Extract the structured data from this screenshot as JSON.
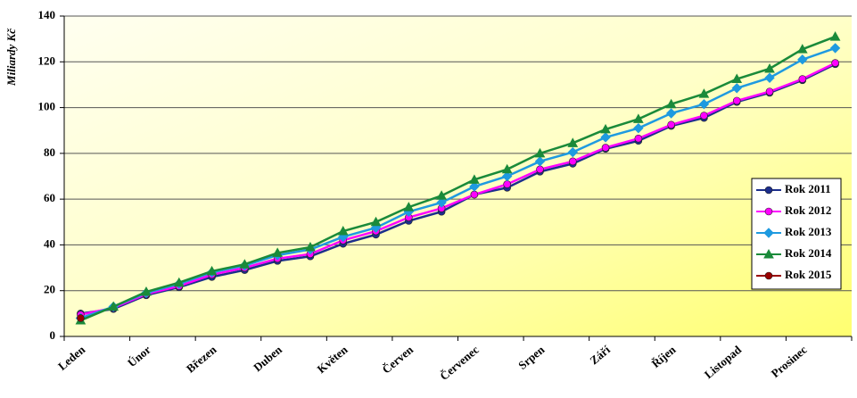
{
  "chart_data": {
    "type": "line",
    "y_label": "Miliardy Kč",
    "categories": [
      "Leden",
      null,
      "Únor",
      null,
      "Březen",
      null,
      "Duben",
      null,
      "Květen",
      null,
      "Červen",
      null,
      "Červenec",
      null,
      "Srpen",
      null,
      "Září",
      null,
      "Říjen",
      null,
      "Listopad",
      null,
      "Prosinec",
      null
    ],
    "ylim": [
      0,
      140
    ],
    "yticks": [
      0,
      20,
      40,
      60,
      80,
      100,
      120,
      140
    ],
    "grid": true,
    "legend": "right",
    "series": [
      {
        "name": "Rok 2011",
        "color": "#1c2e8c",
        "marker": "circle",
        "values": [
          10,
          12,
          18,
          21.5,
          26,
          29,
          33,
          35,
          40.5,
          44.5,
          50.5,
          54.5,
          62,
          65,
          72,
          75.5,
          82,
          85.5,
          92,
          95.5,
          102.5,
          106.5,
          112,
          119
        ]
      },
      {
        "name": "Rok 2012",
        "color": "#ff00ff",
        "marker": "circle",
        "values": [
          9.5,
          12.5,
          18.5,
          22,
          27,
          30,
          34,
          36,
          42,
          46,
          52,
          56,
          62,
          66.5,
          73,
          76.5,
          82.5,
          86.5,
          92.5,
          96.5,
          103,
          107,
          112.5,
          119.5
        ]
      },
      {
        "name": "Rok 2013",
        "color": "#1e9ae0",
        "marker": "diamond",
        "values": [
          8,
          13,
          19,
          23,
          28,
          31,
          35.5,
          38,
          43.5,
          47.5,
          54.5,
          58.5,
          65.5,
          70,
          76.5,
          80.5,
          87,
          91,
          97.5,
          101.5,
          108.5,
          113,
          121,
          126
        ]
      },
      {
        "name": "Rok 2014",
        "color": "#1a8a3a",
        "marker": "triangle",
        "values": [
          7,
          13,
          19.5,
          23.5,
          28.5,
          31.5,
          36.5,
          39,
          46,
          50,
          56.5,
          61.5,
          68.5,
          73,
          80,
          84.5,
          90.5,
          95,
          101.5,
          106,
          112.5,
          117,
          125.5,
          131
        ]
      },
      {
        "name": "Rok 2015",
        "color": "#990000",
        "marker": "circle",
        "values": [
          8,
          null,
          null,
          null,
          null,
          null,
          null,
          null,
          null,
          null,
          null,
          null,
          null,
          null,
          null,
          null,
          null,
          null,
          null,
          null,
          null,
          null,
          null,
          null
        ]
      }
    ]
  }
}
